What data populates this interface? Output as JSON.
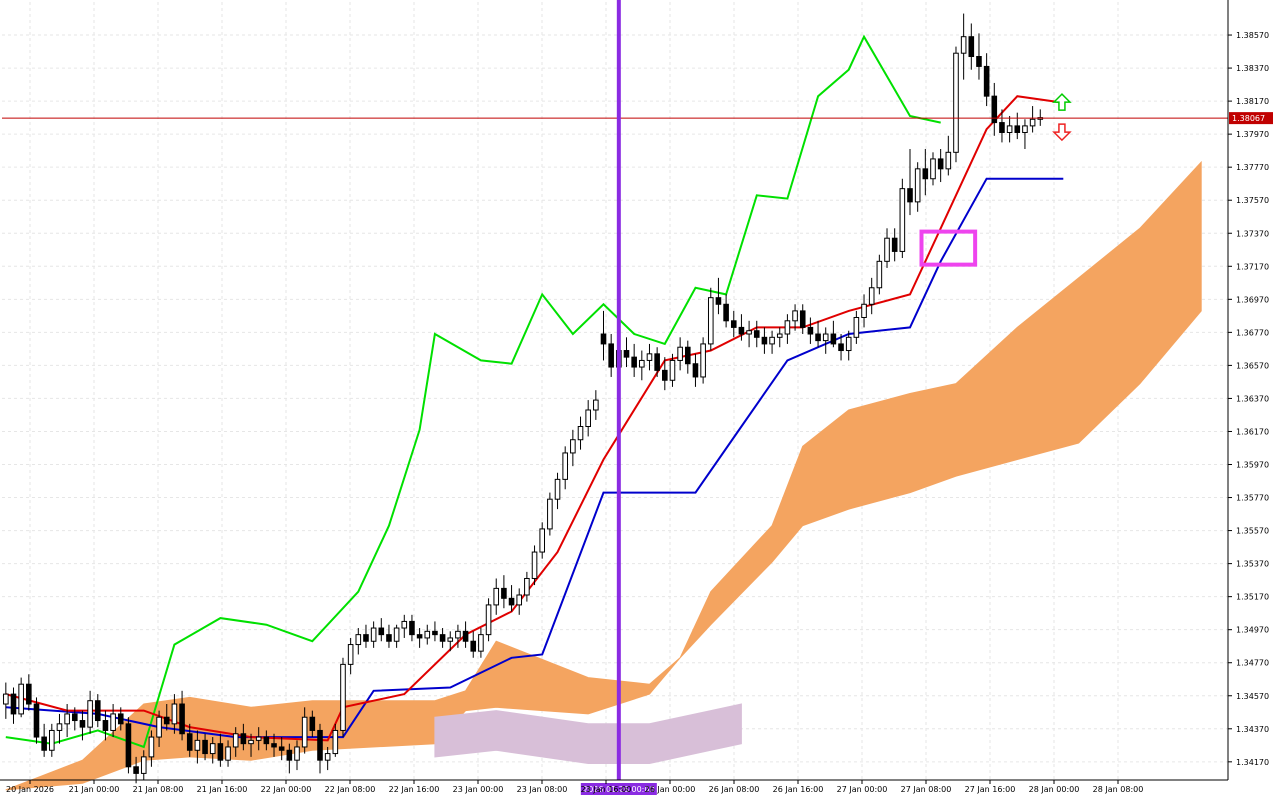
{
  "chart": {
    "symbol_price_tag": "1.38067",
    "colors": {
      "background": "#ffffff",
      "grid": "#e6e6e6",
      "axis": "#000000",
      "text": "#000000",
      "bull_candle": "#ffffff",
      "bear_candle": "#000000",
      "tenkan": "#e00000",
      "kijun": "#0000cc",
      "chikou": "#00e000",
      "cloud_bull": "#f4a460",
      "cloud_bear": "#d8bfd8",
      "price_line": "#c00000",
      "vline": "#8a2be2",
      "highlight_box": "#ee44ee",
      "arrow_up": "#00cc00",
      "arrow_down": "#ee2222"
    }
  },
  "chart_data": {
    "type": "candlestick",
    "y_range": [
      1.3406,
      1.3877
    ],
    "price_ticks": [
      "1.38570",
      "1.38370",
      "1.38170",
      "1.37970",
      "1.37770",
      "1.37570",
      "1.37370",
      "1.37170",
      "1.36970",
      "1.36770",
      "1.36570",
      "1.36370",
      "1.36170",
      "1.35970",
      "1.35770",
      "1.35570",
      "1.35370",
      "1.35170",
      "1.34970",
      "1.34770",
      "1.34570",
      "1.34370",
      "1.34170"
    ],
    "time_labels": [
      "20 Jan 2026",
      "21 Jan 00:00",
      "21 Jan 08:00",
      "21 Jan 16:00",
      "22 Jan 00:00",
      "22 Jan 08:00",
      "22 Jan 16:00",
      "23 Jan 00:00",
      "23 Jan 08:00",
      "23 Jan 16:00",
      "26 Jan 00:00",
      "26 Jan 08:00",
      "26 Jan 16:00",
      "27 Jan 00:00",
      "27 Jan 08:00",
      "27 Jan 16:00",
      "28 Jan 00:00",
      "28 Jan 08:00"
    ],
    "crosshair_time_label": "2026.01.26 00:00",
    "current_price": 1.38067,
    "candles": [
      [
        1.3452,
        1.3465,
        1.3443,
        1.3458
      ],
      [
        1.3458,
        1.3462,
        1.344,
        1.3446
      ],
      [
        1.3446,
        1.3468,
        1.3444,
        1.3464
      ],
      [
        1.3464,
        1.347,
        1.3448,
        1.3452
      ],
      [
        1.3452,
        1.3456,
        1.3428,
        1.3432
      ],
      [
        1.3432,
        1.344,
        1.342,
        1.3424
      ],
      [
        1.3424,
        1.344,
        1.342,
        1.3436
      ],
      [
        1.3436,
        1.3446,
        1.3428,
        1.344
      ],
      [
        1.344,
        1.3452,
        1.3432,
        1.3446
      ],
      [
        1.3446,
        1.345,
        1.3436,
        1.3442
      ],
      [
        1.3442,
        1.3448,
        1.343,
        1.3438
      ],
      [
        1.3438,
        1.346,
        1.3434,
        1.3454
      ],
      [
        1.3454,
        1.3458,
        1.3438,
        1.3442
      ],
      [
        1.3442,
        1.3448,
        1.343,
        1.3436
      ],
      [
        1.3436,
        1.3452,
        1.3432,
        1.3446
      ],
      [
        1.3446,
        1.345,
        1.3436,
        1.344
      ],
      [
        1.344,
        1.3444,
        1.341,
        1.3414
      ],
      [
        1.3414,
        1.342,
        1.3404,
        1.341
      ],
      [
        1.341,
        1.3424,
        1.3406,
        1.342
      ],
      [
        1.342,
        1.3436,
        1.3414,
        1.3432
      ],
      [
        1.3432,
        1.3448,
        1.3426,
        1.3444
      ],
      [
        1.3444,
        1.3452,
        1.3436,
        1.344
      ],
      [
        1.344,
        1.3458,
        1.3434,
        1.3452
      ],
      [
        1.3452,
        1.346,
        1.343,
        1.3434
      ],
      [
        1.3434,
        1.344,
        1.342,
        1.3424
      ],
      [
        1.3424,
        1.3436,
        1.3416,
        1.343
      ],
      [
        1.343,
        1.3434,
        1.3418,
        1.3422
      ],
      [
        1.3422,
        1.3432,
        1.3416,
        1.3428
      ],
      [
        1.3428,
        1.3434,
        1.3414,
        1.3418
      ],
      [
        1.3418,
        1.343,
        1.3414,
        1.3426
      ],
      [
        1.3426,
        1.3438,
        1.342,
        1.3434
      ],
      [
        1.3434,
        1.344,
        1.3424,
        1.3428
      ],
      [
        1.3428,
        1.3434,
        1.342,
        1.343
      ],
      [
        1.343,
        1.3438,
        1.3424,
        1.3432
      ],
      [
        1.3432,
        1.3436,
        1.3424,
        1.3428
      ],
      [
        1.3428,
        1.3434,
        1.342,
        1.3426
      ],
      [
        1.3426,
        1.3432,
        1.3418,
        1.3424
      ],
      [
        1.3424,
        1.3428,
        1.341,
        1.3418
      ],
      [
        1.3418,
        1.343,
        1.3412,
        1.3426
      ],
      [
        1.3426,
        1.345,
        1.3422,
        1.3444
      ],
      [
        1.3444,
        1.3448,
        1.3432,
        1.3436
      ],
      [
        1.3436,
        1.344,
        1.341,
        1.3418
      ],
      [
        1.3418,
        1.3426,
        1.3412,
        1.3422
      ],
      [
        1.3422,
        1.344,
        1.342,
        1.3436
      ],
      [
        1.3436,
        1.348,
        1.3432,
        1.3476
      ],
      [
        1.3476,
        1.3492,
        1.347,
        1.3488
      ],
      [
        1.3488,
        1.3498,
        1.3482,
        1.3494
      ],
      [
        1.3494,
        1.35,
        1.3486,
        1.349
      ],
      [
        1.349,
        1.3502,
        1.3486,
        1.3498
      ],
      [
        1.3498,
        1.3504,
        1.349,
        1.3494
      ],
      [
        1.3494,
        1.35,
        1.3486,
        1.349
      ],
      [
        1.349,
        1.35,
        1.3486,
        1.3498
      ],
      [
        1.3498,
        1.3506,
        1.3492,
        1.3502
      ],
      [
        1.3502,
        1.3506,
        1.349,
        1.3494
      ],
      [
        1.3494,
        1.3498,
        1.3486,
        1.3492
      ],
      [
        1.3492,
        1.35,
        1.3488,
        1.3496
      ],
      [
        1.3496,
        1.3502,
        1.349,
        1.3494
      ],
      [
        1.3494,
        1.3498,
        1.3486,
        1.349
      ],
      [
        1.349,
        1.3496,
        1.3484,
        1.3492
      ],
      [
        1.3492,
        1.35,
        1.3486,
        1.3496
      ],
      [
        1.3496,
        1.3502,
        1.3486,
        1.349
      ],
      [
        1.349,
        1.3496,
        1.348,
        1.3484
      ],
      [
        1.3484,
        1.3498,
        1.348,
        1.3494
      ],
      [
        1.3494,
        1.3516,
        1.349,
        1.3512
      ],
      [
        1.3512,
        1.3528,
        1.3506,
        1.3522
      ],
      [
        1.3522,
        1.353,
        1.351,
        1.3516
      ],
      [
        1.3516,
        1.3524,
        1.3508,
        1.3512
      ],
      [
        1.3512,
        1.3522,
        1.3506,
        1.3518
      ],
      [
        1.3518,
        1.3532,
        1.3514,
        1.3528
      ],
      [
        1.3528,
        1.3548,
        1.3524,
        1.3544
      ],
      [
        1.3544,
        1.3562,
        1.354,
        1.3558
      ],
      [
        1.3558,
        1.358,
        1.3554,
        1.3576
      ],
      [
        1.3576,
        1.3592,
        1.357,
        1.3588
      ],
      [
        1.3588,
        1.3608,
        1.3582,
        1.3604
      ],
      [
        1.3604,
        1.3618,
        1.3596,
        1.3612
      ],
      [
        1.3612,
        1.3626,
        1.3606,
        1.362
      ],
      [
        1.362,
        1.3636,
        1.3614,
        1.363
      ],
      [
        1.363,
        1.3642,
        1.3624,
        1.3636
      ],
      [
        1.3676,
        1.369,
        1.366,
        1.367
      ],
      [
        1.367,
        1.3676,
        1.365,
        1.3656
      ],
      [
        1.3656,
        1.3672,
        1.365,
        1.3666
      ],
      [
        1.3666,
        1.3674,
        1.3656,
        1.3662
      ],
      [
        1.3662,
        1.367,
        1.365,
        1.3656
      ],
      [
        1.3656,
        1.3666,
        1.3648,
        1.366
      ],
      [
        1.366,
        1.367,
        1.3654,
        1.3664
      ],
      [
        1.3664,
        1.3668,
        1.365,
        1.3654
      ],
      [
        1.3654,
        1.3662,
        1.3642,
        1.3648
      ],
      [
        1.3648,
        1.3664,
        1.3644,
        1.366
      ],
      [
        1.366,
        1.3674,
        1.3654,
        1.3668
      ],
      [
        1.3668,
        1.3672,
        1.3652,
        1.3658
      ],
      [
        1.3658,
        1.3664,
        1.3644,
        1.365
      ],
      [
        1.365,
        1.3674,
        1.3646,
        1.367
      ],
      [
        1.367,
        1.3704,
        1.3666,
        1.3698
      ],
      [
        1.3698,
        1.371,
        1.3688,
        1.3694
      ],
      [
        1.3694,
        1.37,
        1.368,
        1.3684
      ],
      [
        1.3684,
        1.369,
        1.3674,
        1.368
      ],
      [
        1.368,
        1.3688,
        1.3672,
        1.3676
      ],
      [
        1.3676,
        1.3684,
        1.3668,
        1.3678
      ],
      [
        1.3678,
        1.3684,
        1.3668,
        1.3674
      ],
      [
        1.3674,
        1.368,
        1.3664,
        1.367
      ],
      [
        1.367,
        1.3678,
        1.3664,
        1.3674
      ],
      [
        1.3674,
        1.368,
        1.3668,
        1.3676
      ],
      [
        1.3676,
        1.3688,
        1.367,
        1.3684
      ],
      [
        1.3684,
        1.3694,
        1.3678,
        1.369
      ],
      [
        1.369,
        1.3694,
        1.3676,
        1.368
      ],
      [
        1.368,
        1.3686,
        1.367,
        1.3676
      ],
      [
        1.3676,
        1.3684,
        1.3668,
        1.3672
      ],
      [
        1.3672,
        1.368,
        1.3664,
        1.3676
      ],
      [
        1.3676,
        1.3684,
        1.3668,
        1.367
      ],
      [
        1.367,
        1.3676,
        1.366,
        1.3666
      ],
      [
        1.3666,
        1.3678,
        1.366,
        1.3674
      ],
      [
        1.3674,
        1.369,
        1.367,
        1.3686
      ],
      [
        1.3686,
        1.37,
        1.368,
        1.3694
      ],
      [
        1.3694,
        1.371,
        1.3688,
        1.3704
      ],
      [
        1.3704,
        1.3724,
        1.37,
        1.372
      ],
      [
        1.372,
        1.374,
        1.3716,
        1.3734
      ],
      [
        1.3734,
        1.374,
        1.372,
        1.3726
      ],
      [
        1.3726,
        1.377,
        1.3722,
        1.3764
      ],
      [
        1.3764,
        1.3788,
        1.3748,
        1.3756
      ],
      [
        1.3756,
        1.378,
        1.375,
        1.3776
      ],
      [
        1.3776,
        1.3788,
        1.376,
        1.377
      ],
      [
        1.377,
        1.3786,
        1.3766,
        1.3782
      ],
      [
        1.3782,
        1.3788,
        1.3768,
        1.3776
      ],
      [
        1.3776,
        1.3796,
        1.3772,
        1.3786
      ],
      [
        1.3786,
        1.385,
        1.378,
        1.3846
      ],
      [
        1.3846,
        1.387,
        1.383,
        1.3856
      ],
      [
        1.3856,
        1.3864,
        1.3836,
        1.3844
      ],
      [
        1.3844,
        1.3858,
        1.383,
        1.3838
      ],
      [
        1.3838,
        1.3846,
        1.3814,
        1.382
      ],
      [
        1.382,
        1.3828,
        1.3796,
        1.3804
      ],
      [
        1.3804,
        1.3812,
        1.3792,
        1.3798
      ],
      [
        1.3798,
        1.3808,
        1.3792,
        1.3802
      ],
      [
        1.3802,
        1.381,
        1.3794,
        1.3798
      ],
      [
        1.3798,
        1.3806,
        1.3788,
        1.3802
      ],
      [
        1.3802,
        1.3814,
        1.3798,
        1.3806
      ],
      [
        1.3806,
        1.3812,
        1.3802,
        1.3807
      ]
    ],
    "tenkan": [
      [
        0,
        1.3458
      ],
      [
        8,
        1.3448
      ],
      [
        18,
        1.3448
      ],
      [
        24,
        1.3438
      ],
      [
        32,
        1.3432
      ],
      [
        42,
        1.343
      ],
      [
        44,
        1.345
      ],
      [
        52,
        1.3458
      ],
      [
        60,
        1.3494
      ],
      [
        66,
        1.3508
      ],
      [
        72,
        1.3544
      ],
      [
        78,
        1.36
      ],
      [
        86,
        1.366
      ],
      [
        92,
        1.3666
      ],
      [
        98,
        1.368
      ],
      [
        104,
        1.368
      ],
      [
        110,
        1.369
      ],
      [
        118,
        1.37
      ],
      [
        122,
        1.374
      ],
      [
        128,
        1.38
      ],
      [
        132,
        1.382
      ],
      [
        138,
        1.3816
      ]
    ],
    "kijun": [
      [
        0,
        1.345
      ],
      [
        12,
        1.3446
      ],
      [
        20,
        1.3438
      ],
      [
        30,
        1.3432
      ],
      [
        44,
        1.3432
      ],
      [
        48,
        1.346
      ],
      [
        58,
        1.3462
      ],
      [
        66,
        1.348
      ],
      [
        70,
        1.3482
      ],
      [
        78,
        1.358
      ],
      [
        90,
        1.358
      ],
      [
        96,
        1.362
      ],
      [
        102,
        1.366
      ],
      [
        110,
        1.3676
      ],
      [
        118,
        1.368
      ],
      [
        122,
        1.372
      ],
      [
        128,
        1.377
      ],
      [
        138,
        1.377
      ]
    ],
    "chikou": [
      [
        0,
        1.3432
      ],
      [
        6,
        1.3428
      ],
      [
        12,
        1.3436
      ],
      [
        18,
        1.3426
      ],
      [
        22,
        1.3488
      ],
      [
        28,
        1.3504
      ],
      [
        34,
        1.35
      ],
      [
        40,
        1.349
      ],
      [
        46,
        1.352
      ],
      [
        50,
        1.356
      ],
      [
        54,
        1.3618
      ],
      [
        56,
        1.3676
      ],
      [
        62,
        1.366
      ],
      [
        66,
        1.3658
      ],
      [
        70,
        1.37
      ],
      [
        74,
        1.3676
      ],
      [
        78,
        1.3694
      ],
      [
        82,
        1.3676
      ],
      [
        86,
        1.367
      ],
      [
        90,
        1.3704
      ],
      [
        94,
        1.37
      ],
      [
        98,
        1.376
      ],
      [
        102,
        1.3758
      ],
      [
        106,
        1.382
      ],
      [
        110,
        1.3836
      ],
      [
        112,
        1.3856
      ],
      [
        118,
        1.3808
      ],
      [
        122,
        1.3804
      ]
    ],
    "cloud_upper": [
      [
        0,
        1.34
      ],
      [
        10,
        1.3418
      ],
      [
        18,
        1.3452
      ],
      [
        24,
        1.3456
      ],
      [
        32,
        1.345
      ],
      [
        40,
        1.3454
      ],
      [
        56,
        1.3454
      ],
      [
        60,
        1.346
      ],
      [
        64,
        1.349
      ],
      [
        76,
        1.3468
      ],
      [
        84,
        1.3464
      ],
      [
        88,
        1.348
      ],
      [
        92,
        1.352
      ],
      [
        100,
        1.356
      ],
      [
        104,
        1.3608
      ],
      [
        110,
        1.363
      ],
      [
        118,
        1.364
      ],
      [
        124,
        1.3646
      ],
      [
        132,
        1.368
      ],
      [
        140,
        1.371
      ],
      [
        148,
        1.374
      ],
      [
        156,
        1.378
      ]
    ],
    "cloud_lower": [
      [
        0,
        1.34
      ],
      [
        10,
        1.3404
      ],
      [
        18,
        1.3418
      ],
      [
        24,
        1.342
      ],
      [
        32,
        1.3418
      ],
      [
        40,
        1.3424
      ],
      [
        56,
        1.3428
      ],
      [
        60,
        1.3448
      ],
      [
        64,
        1.345
      ],
      [
        76,
        1.3446
      ],
      [
        84,
        1.3458
      ],
      [
        88,
        1.348
      ],
      [
        92,
        1.35
      ],
      [
        100,
        1.3538
      ],
      [
        104,
        1.356
      ],
      [
        110,
        1.357
      ],
      [
        118,
        1.358
      ],
      [
        124,
        1.359
      ],
      [
        132,
        1.36
      ],
      [
        140,
        1.361
      ],
      [
        148,
        1.3646
      ],
      [
        156,
        1.369
      ]
    ],
    "cloud_future_bear": [
      [
        56,
        1.3444
      ],
      [
        64,
        1.3448
      ],
      [
        76,
        1.344
      ],
      [
        84,
        1.344
      ],
      [
        92,
        1.3448
      ],
      [
        96,
        1.3452
      ]
    ],
    "vline_index": 80,
    "highlight_box": {
      "from_index": 120,
      "to_index": 126,
      "low": 1.3718,
      "high": 1.3738
    }
  },
  "ui": {
    "up_arrow_icon": "arrow-up-icon",
    "down_arrow_icon": "arrow-down-icon"
  }
}
